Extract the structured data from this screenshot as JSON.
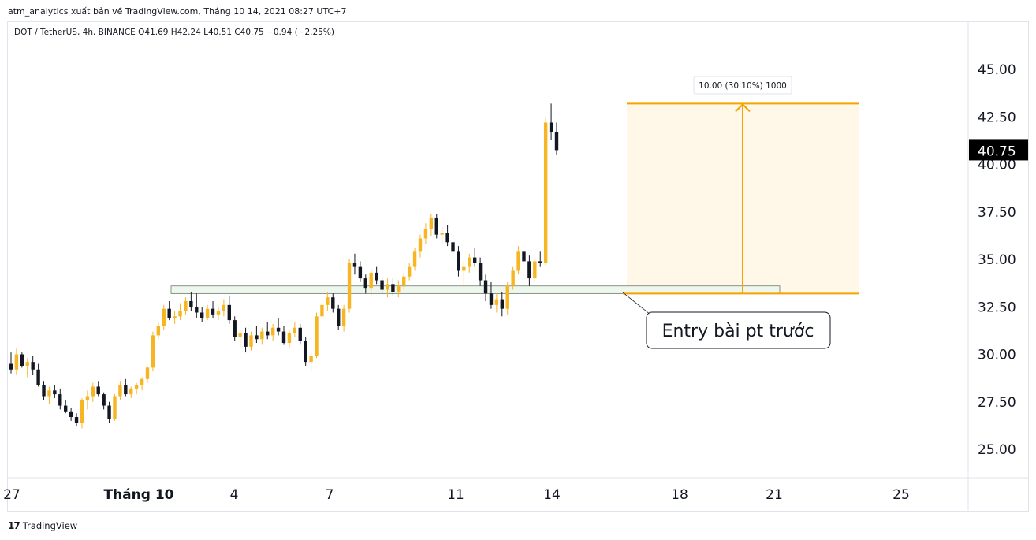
{
  "header": {
    "publisher_line": "atm_analytics xuất bản về TradingView.com, Tháng 10 14, 2021 08:27 UTC+7"
  },
  "symbol": {
    "line": "DOT / TetherUS, 4h, BINANCE  O41.69  H42.24  L40.51  C40.75  −0.94 (−2.25%)"
  },
  "footer": {
    "logo_glyph": "17",
    "brand": "TradingView"
  },
  "colors": {
    "bull": "#f7b523",
    "bear": "#131722",
    "target_line": "#f5a300",
    "target_fill": "#fff8e8",
    "zone_fill": "#eef7ee",
    "zone_border": "#6b7a6b",
    "price_label_bg": "#000000"
  },
  "chart_data": {
    "type": "candlestick",
    "x_tick_labels": [
      "27",
      "Tháng 10",
      "4",
      "7",
      "11",
      "14",
      "18",
      "21",
      "25"
    ],
    "y_ticks": [
      "45.00",
      "42.50",
      "40.00",
      "37.50",
      "35.00",
      "32.50",
      "30.00",
      "27.50",
      "25.00"
    ],
    "y_range": [
      23.8,
      46.5
    ],
    "last_price_label": "40.75",
    "candles": [
      [
        29.5,
        30.1,
        29.0,
        29.2
      ],
      [
        29.2,
        30.3,
        28.9,
        30.0
      ],
      [
        30.0,
        30.1,
        29.3,
        29.4
      ],
      [
        29.4,
        29.8,
        28.8,
        29.6
      ],
      [
        29.6,
        29.9,
        28.9,
        29.2
      ],
      [
        29.2,
        29.5,
        28.3,
        28.4
      ],
      [
        28.4,
        28.6,
        27.6,
        27.8
      ],
      [
        27.8,
        28.3,
        27.4,
        28.1
      ],
      [
        28.1,
        28.4,
        27.7,
        27.9
      ],
      [
        27.9,
        28.2,
        27.1,
        27.3
      ],
      [
        27.3,
        27.6,
        26.9,
        27.0
      ],
      [
        27.0,
        27.2,
        26.5,
        26.7
      ],
      [
        26.7,
        26.9,
        26.2,
        26.4
      ],
      [
        26.4,
        27.7,
        26.1,
        27.6
      ],
      [
        27.6,
        28.1,
        27.1,
        27.8
      ],
      [
        27.8,
        28.5,
        27.5,
        28.3
      ],
      [
        28.3,
        28.6,
        27.8,
        27.9
      ],
      [
        27.9,
        28.0,
        27.1,
        27.3
      ],
      [
        27.3,
        27.5,
        26.4,
        26.6
      ],
      [
        26.6,
        27.9,
        26.5,
        27.8
      ],
      [
        27.8,
        28.6,
        27.6,
        28.4
      ],
      [
        28.4,
        28.7,
        27.8,
        27.9
      ],
      [
        27.9,
        28.3,
        27.7,
        28.2
      ],
      [
        28.2,
        28.5,
        27.9,
        28.4
      ],
      [
        28.4,
        28.8,
        28.1,
        28.7
      ],
      [
        28.7,
        29.4,
        28.5,
        29.3
      ],
      [
        29.3,
        31.2,
        29.1,
        31.0
      ],
      [
        31.0,
        31.7,
        30.8,
        31.5
      ],
      [
        31.5,
        32.6,
        31.3,
        32.4
      ],
      [
        32.4,
        32.8,
        31.8,
        31.9
      ],
      [
        31.9,
        32.3,
        31.6,
        32.0
      ],
      [
        32.0,
        32.7,
        31.8,
        32.3
      ],
      [
        32.3,
        33.0,
        32.1,
        32.8
      ],
      [
        32.8,
        33.3,
        32.3,
        32.5
      ],
      [
        32.5,
        33.2,
        31.9,
        32.2
      ],
      [
        32.2,
        32.5,
        31.7,
        31.9
      ],
      [
        31.9,
        32.6,
        31.8,
        32.4
      ],
      [
        32.4,
        32.8,
        31.9,
        32.1
      ],
      [
        32.1,
        32.5,
        31.8,
        32.3
      ],
      [
        32.3,
        32.9,
        32.0,
        32.6
      ],
      [
        32.6,
        33.1,
        31.6,
        31.8
      ],
      [
        31.8,
        32.0,
        30.7,
        30.9
      ],
      [
        30.9,
        31.3,
        30.4,
        31.1
      ],
      [
        31.1,
        31.4,
        30.1,
        30.4
      ],
      [
        30.4,
        31.2,
        30.2,
        31.0
      ],
      [
        31.0,
        31.5,
        30.6,
        30.8
      ],
      [
        30.8,
        31.4,
        30.5,
        31.2
      ],
      [
        31.2,
        31.7,
        30.8,
        31.0
      ],
      [
        31.0,
        31.6,
        30.7,
        31.4
      ],
      [
        31.4,
        31.9,
        31.0,
        31.2
      ],
      [
        31.2,
        31.5,
        30.5,
        30.6
      ],
      [
        30.6,
        31.3,
        30.3,
        31.1
      ],
      [
        31.1,
        31.7,
        30.9,
        31.4
      ],
      [
        31.4,
        31.6,
        30.5,
        30.7
      ],
      [
        30.7,
        30.9,
        29.4,
        29.6
      ],
      [
        29.6,
        30.1,
        29.1,
        29.9
      ],
      [
        29.9,
        32.2,
        29.8,
        32.0
      ],
      [
        32.0,
        32.8,
        31.7,
        32.6
      ],
      [
        32.6,
        33.3,
        32.3,
        33.0
      ],
      [
        33.0,
        33.2,
        32.2,
        32.4
      ],
      [
        32.4,
        32.6,
        31.3,
        31.5
      ],
      [
        31.5,
        32.6,
        31.2,
        32.4
      ],
      [
        32.4,
        35.0,
        32.2,
        34.8
      ],
      [
        34.8,
        35.3,
        34.2,
        34.6
      ],
      [
        34.6,
        34.9,
        33.8,
        34.0
      ],
      [
        34.0,
        34.2,
        33.2,
        33.5
      ],
      [
        33.5,
        34.5,
        33.1,
        34.3
      ],
      [
        34.3,
        34.6,
        33.7,
        33.9
      ],
      [
        33.9,
        34.1,
        33.2,
        33.4
      ],
      [
        33.4,
        34.0,
        33.0,
        33.7
      ],
      [
        33.7,
        34.0,
        33.1,
        33.3
      ],
      [
        33.3,
        33.9,
        33.0,
        33.6
      ],
      [
        33.6,
        34.3,
        33.4,
        34.1
      ],
      [
        34.1,
        34.8,
        33.9,
        34.6
      ],
      [
        34.6,
        35.6,
        34.4,
        35.4
      ],
      [
        35.4,
        36.3,
        35.1,
        36.1
      ],
      [
        36.1,
        36.9,
        35.8,
        36.6
      ],
      [
        36.6,
        37.4,
        36.2,
        37.2
      ],
      [
        37.2,
        37.4,
        36.1,
        36.3
      ],
      [
        36.3,
        36.7,
        35.8,
        36.4
      ],
      [
        36.4,
        36.8,
        35.7,
        35.9
      ],
      [
        35.9,
        36.3,
        35.2,
        35.4
      ],
      [
        35.4,
        35.7,
        34.1,
        34.4
      ],
      [
        34.4,
        34.9,
        33.6,
        34.6
      ],
      [
        34.6,
        35.3,
        34.3,
        35.1
      ],
      [
        35.1,
        35.6,
        34.6,
        34.8
      ],
      [
        34.8,
        35.1,
        33.6,
        33.9
      ],
      [
        33.9,
        34.2,
        32.8,
        33.2
      ],
      [
        33.2,
        33.8,
        32.4,
        32.6
      ],
      [
        32.6,
        33.2,
        32.2,
        32.9
      ],
      [
        32.9,
        33.3,
        32.0,
        32.4
      ],
      [
        32.4,
        33.8,
        32.1,
        33.6
      ],
      [
        33.6,
        34.6,
        33.4,
        34.4
      ],
      [
        34.4,
        35.7,
        34.2,
        35.4
      ],
      [
        35.4,
        35.8,
        34.7,
        34.9
      ],
      [
        34.9,
        35.2,
        33.6,
        34.0
      ],
      [
        34.0,
        35.1,
        33.8,
        34.9
      ],
      [
        34.9,
        35.4,
        34.6,
        34.8
      ],
      [
        34.8,
        42.5,
        34.7,
        42.2
      ],
      [
        42.2,
        43.2,
        41.3,
        41.7
      ],
      [
        41.7,
        42.2,
        40.5,
        40.75
      ]
    ],
    "drawings": {
      "target_label": "10.00 (30.10%) 1000",
      "target_price_range": [
        33.2,
        43.2
      ],
      "support_zone": [
        33.2,
        33.6
      ],
      "callout_text": "Entry bài pt trước"
    }
  }
}
